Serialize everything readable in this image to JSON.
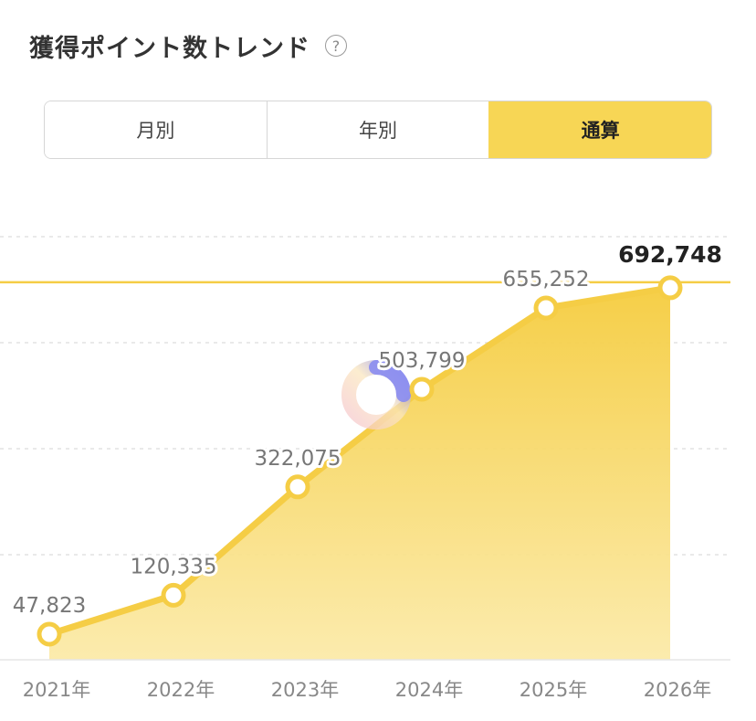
{
  "header": {
    "title": "獲得ポイント数トレンド",
    "help_icon": "?"
  },
  "tabs": [
    {
      "label": "月別",
      "active": false
    },
    {
      "label": "年別",
      "active": false
    },
    {
      "label": "通算",
      "active": true
    }
  ],
  "colors": {
    "accent": "#f7d655",
    "line": "#f5cd45",
    "fill_top": "#f5cc3e",
    "fill_bottom": "#fbe9a4"
  },
  "chart_data": {
    "type": "area",
    "categories": [
      "2021年",
      "2022年",
      "2023年",
      "2024年",
      "2025年",
      "2026年"
    ],
    "values": [
      47823,
      120335,
      322075,
      503799,
      655252,
      692748
    ],
    "data_labels": [
      "47,823",
      "120,335",
      "322,075",
      "503,799",
      "655,252",
      "692,748"
    ],
    "reference_line": 692748,
    "grid": true,
    "legend": "none",
    "title": "獲得ポイント数トレンド",
    "xlabel": "",
    "ylabel": ""
  }
}
